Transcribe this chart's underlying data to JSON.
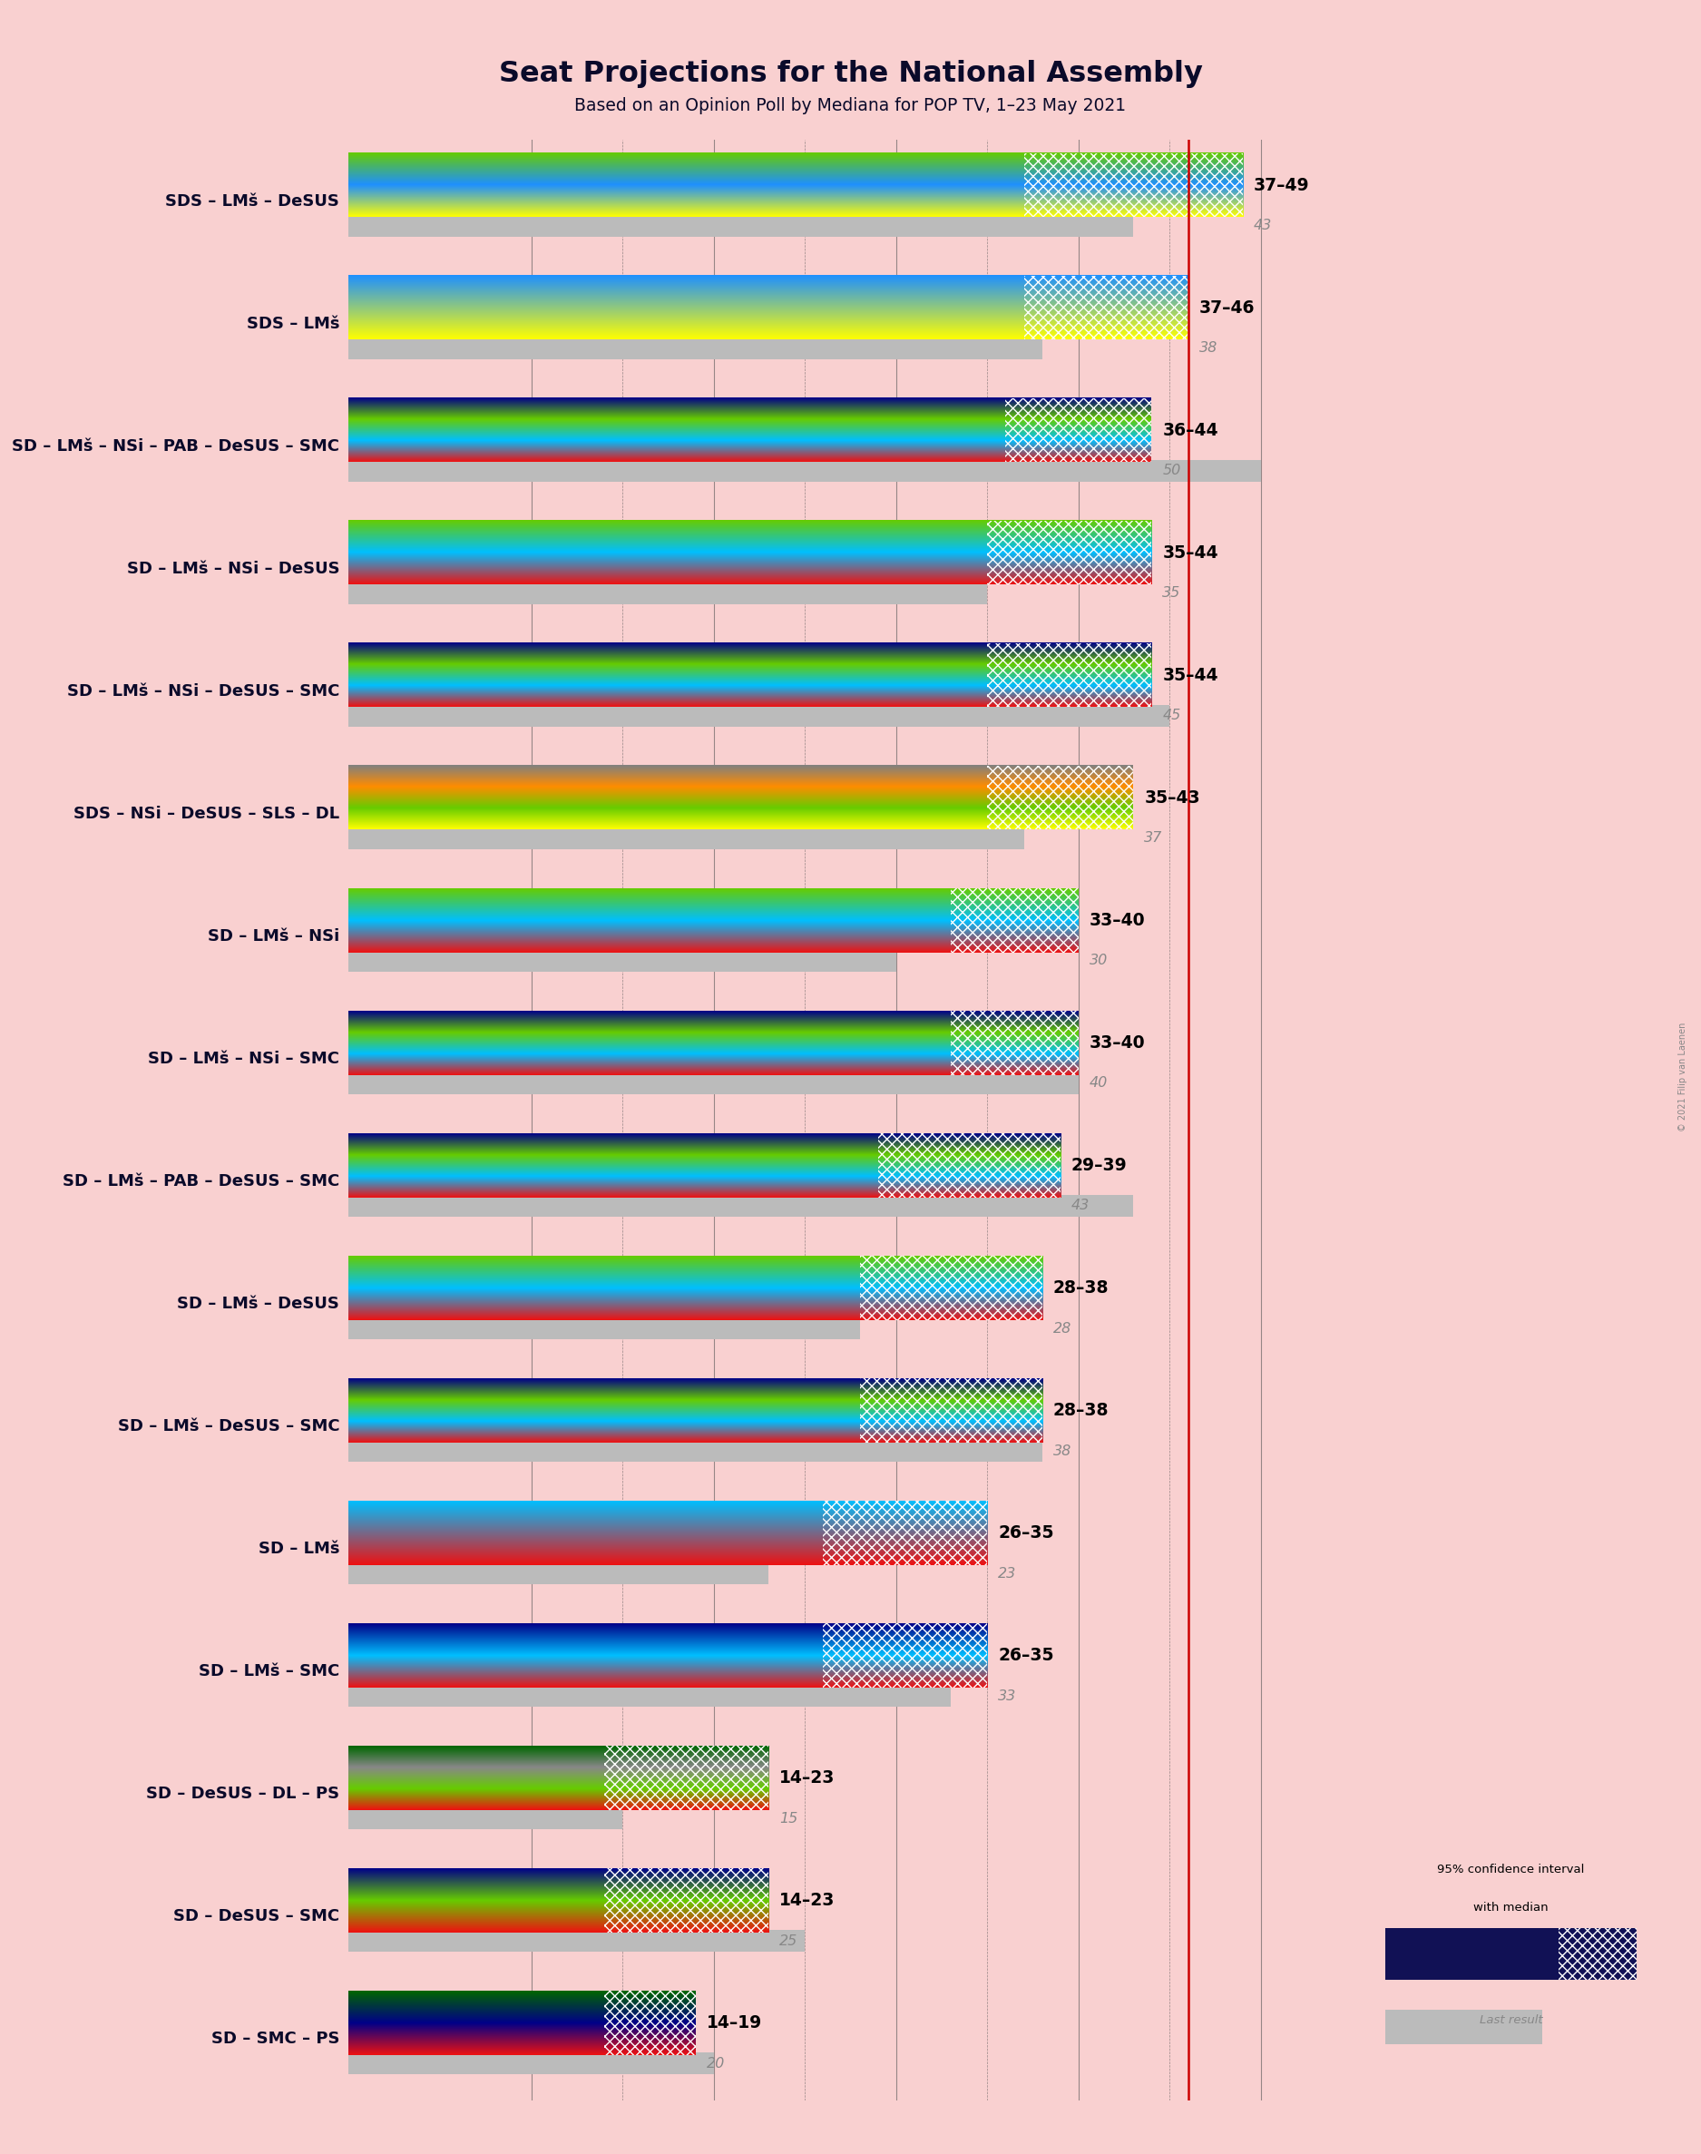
{
  "title": "Seat Projections for the National Assembly",
  "subtitle": "Based on an Opinion Poll by Mediana for POP TV, 1–23 May 2021",
  "copyright": "© 2021 Filip van Laenen",
  "background_color": "#f9d0d0",
  "majority_line": 46,
  "x_tick_start": 10,
  "x_tick_step": 5,
  "x_tick_end": 55,
  "coalitions": [
    {
      "name": "SDS – LMš – DeSUS",
      "low": 37,
      "high": 49,
      "median": 43,
      "last_result": 43,
      "colors": [
        "#FFFF00",
        "#1E90FF",
        "#66CC00"
      ]
    },
    {
      "name": "SDS – LMš",
      "low": 37,
      "high": 46,
      "median": 38,
      "last_result": 38,
      "colors": [
        "#FFFF00",
        "#1E90FF"
      ]
    },
    {
      "name": "SD – LMš – NSi – PAB – DeSUS – SMC",
      "low": 36,
      "high": 44,
      "median": 50,
      "last_result": 50,
      "colors": [
        "#EE1111",
        "#00BFFF",
        "#66CC00",
        "#000088"
      ]
    },
    {
      "name": "SD – LMš – NSi – DeSUS",
      "low": 35,
      "high": 44,
      "median": 35,
      "last_result": 35,
      "colors": [
        "#EE1111",
        "#00BFFF",
        "#66CC00"
      ]
    },
    {
      "name": "SD – LMš – NSi – DeSUS – SMC",
      "low": 35,
      "high": 44,
      "median": 45,
      "last_result": 45,
      "colors": [
        "#EE1111",
        "#00BFFF",
        "#66CC00",
        "#000088"
      ]
    },
    {
      "name": "SDS – NSi – DeSUS – SLS – DL",
      "low": 35,
      "high": 43,
      "median": 37,
      "last_result": 37,
      "colors": [
        "#FFFF00",
        "#66CC00",
        "#FF8C00",
        "#808080"
      ]
    },
    {
      "name": "SD – LMš – NSi",
      "low": 33,
      "high": 40,
      "median": 30,
      "last_result": 30,
      "colors": [
        "#EE1111",
        "#00BFFF",
        "#66CC00"
      ]
    },
    {
      "name": "SD – LMš – NSi – SMC",
      "low": 33,
      "high": 40,
      "median": 40,
      "last_result": 40,
      "colors": [
        "#EE1111",
        "#00BFFF",
        "#66CC00",
        "#000088"
      ]
    },
    {
      "name": "SD – LMš – PAB – DeSUS – SMC",
      "low": 29,
      "high": 39,
      "median": 43,
      "last_result": 43,
      "colors": [
        "#EE1111",
        "#00BFFF",
        "#66CC00",
        "#000088"
      ]
    },
    {
      "name": "SD – LMš – DeSUS",
      "low": 28,
      "high": 38,
      "median": 28,
      "last_result": 28,
      "colors": [
        "#EE1111",
        "#00BFFF",
        "#66CC00"
      ]
    },
    {
      "name": "SD – LMš – DeSUS – SMC",
      "low": 28,
      "high": 38,
      "median": 38,
      "last_result": 38,
      "colors": [
        "#EE1111",
        "#00BFFF",
        "#66CC00",
        "#000088"
      ]
    },
    {
      "name": "SD – LMš",
      "low": 26,
      "high": 35,
      "median": 23,
      "last_result": 23,
      "colors": [
        "#EE1111",
        "#00BFFF"
      ]
    },
    {
      "name": "SD – LMš – SMC",
      "low": 26,
      "high": 35,
      "median": 33,
      "last_result": 33,
      "colors": [
        "#EE1111",
        "#00BFFF",
        "#000088"
      ]
    },
    {
      "name": "SD – DeSUS – DL – PS",
      "low": 14,
      "high": 23,
      "median": 15,
      "last_result": 15,
      "colors": [
        "#EE1111",
        "#66CC00",
        "#888888",
        "#006600"
      ]
    },
    {
      "name": "SD – DeSUS – SMC",
      "low": 14,
      "high": 23,
      "median": 25,
      "last_result": 25,
      "colors": [
        "#EE1111",
        "#66CC00",
        "#000088"
      ]
    },
    {
      "name": "SD – SMC – PS",
      "low": 14,
      "high": 19,
      "median": 20,
      "last_result": 20,
      "colors": [
        "#EE1111",
        "#000088",
        "#006600"
      ]
    }
  ]
}
